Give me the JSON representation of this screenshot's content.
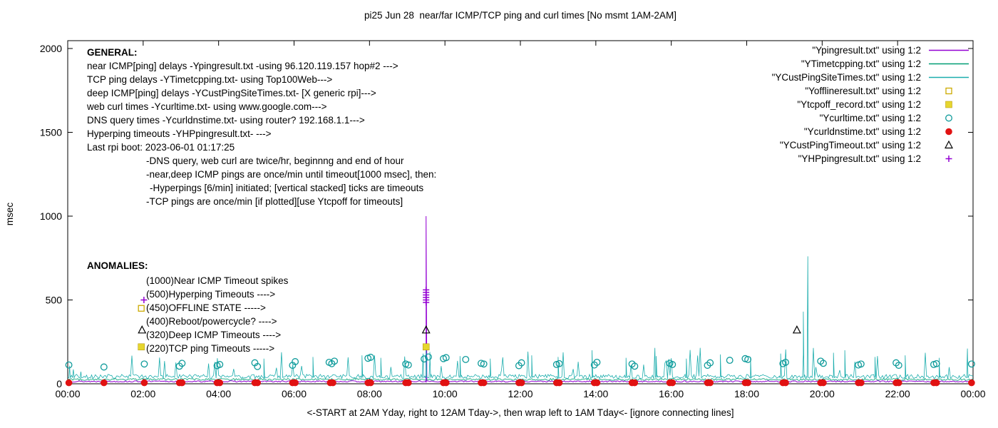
{
  "chart_data": {
    "type": "line",
    "title": "pi25 Jun 28  near/far ICMP/TCP ping and curl times [No msmt 1AM-2AM]",
    "xlabel": "<-START at 2AM Yday, right to 12AM Tday->, then wrap left to 1AM Tday<- [ignore connecting lines]",
    "ylabel": "msec",
    "ylim": [
      0,
      2000
    ],
    "xlim_hours": [
      0,
      24
    ],
    "y_ticks": [
      0,
      500,
      1000,
      1500,
      2000
    ],
    "x_tick_hours": [
      0,
      2,
      4,
      6,
      8,
      10,
      12,
      14,
      16,
      18,
      20,
      22,
      24
    ],
    "x_tick_labels": [
      "00:00",
      "02:00",
      "04:00",
      "06:00",
      "08:00",
      "10:00",
      "12:00",
      "14:00",
      "16:00",
      "18:00",
      "20:00",
      "22:00",
      "00:00"
    ],
    "grid": false,
    "legend_position": "top-right",
    "series": [
      {
        "name": "Ypingresult.txt",
        "type": "line",
        "color": "#9400d3",
        "width": 1.0,
        "baseline": 10,
        "noise": 8,
        "spikes": [
          [
            9.5,
            1000
          ]
        ]
      },
      {
        "name": "YTimetcpping.txt",
        "type": "line",
        "color": "#009e73",
        "width": 0.8,
        "baseline": 20,
        "noise": 12,
        "spikes": []
      },
      {
        "name": "YCustPingSiteTimes.txt",
        "type": "line",
        "color": "#1cadad",
        "width": 0.8,
        "baseline": 30,
        "noise": 26,
        "spike_rate": 0.05,
        "spike_range": [
          80,
          215
        ],
        "spikes": [
          [
            0.05,
            108
          ],
          [
            0.15,
            86
          ],
          [
            0.35,
            72
          ],
          [
            5.2,
            150
          ],
          [
            6.5,
            160
          ],
          [
            7.8,
            170
          ],
          [
            8.3,
            155
          ],
          [
            9.42,
            180
          ],
          [
            9.5,
            205
          ],
          [
            9.6,
            190
          ],
          [
            10.4,
            165
          ],
          [
            11.2,
            150
          ],
          [
            12.3,
            170
          ],
          [
            13.0,
            160
          ],
          [
            13.9,
            200
          ],
          [
            14.8,
            155
          ],
          [
            15.6,
            165
          ],
          [
            16.4,
            150
          ],
          [
            17.3,
            175
          ],
          [
            18.1,
            160
          ],
          [
            18.9,
            180
          ],
          [
            19.5,
            430
          ],
          [
            19.62,
            760
          ],
          [
            20.3,
            185
          ],
          [
            20.6,
            200
          ],
          [
            21.4,
            160
          ],
          [
            22.2,
            170
          ],
          [
            23.1,
            155
          ],
          [
            23.85,
            210
          ]
        ]
      },
      {
        "name": "Yofflineresult.txt",
        "type": "points",
        "marker": "open-square",
        "color": "#ccaa00",
        "points": []
      },
      {
        "name": "Ytcpoff_record.txt",
        "type": "points",
        "marker": "filled-square",
        "color": "#e6d62e",
        "points": [
          [
            9.5,
            220
          ]
        ]
      },
      {
        "name": "Ycurltime.txt",
        "type": "points",
        "marker": "open-circle",
        "color": "#0f9b9b",
        "points": [
          [
            0.03,
            112
          ],
          [
            0.96,
            100
          ],
          [
            2.03,
            118
          ],
          [
            2.96,
            105
          ],
          [
            3.03,
            122
          ],
          [
            3.96,
            108
          ],
          [
            4.03,
            115
          ],
          [
            4.96,
            125
          ],
          [
            5.03,
            103
          ],
          [
            5.96,
            110
          ],
          [
            6.03,
            132
          ],
          [
            6.93,
            128
          ],
          [
            7.0,
            120
          ],
          [
            7.07,
            135
          ],
          [
            7.96,
            152
          ],
          [
            8.03,
            158
          ],
          [
            8.96,
            118
          ],
          [
            9.03,
            112
          ],
          [
            9.45,
            148
          ],
          [
            9.56,
            160
          ],
          [
            9.96,
            150
          ],
          [
            10.03,
            156
          ],
          [
            10.55,
            145
          ],
          [
            10.96,
            122
          ],
          [
            11.03,
            118
          ],
          [
            11.96,
            108
          ],
          [
            12.03,
            125
          ],
          [
            12.96,
            115
          ],
          [
            13.03,
            120
          ],
          [
            13.96,
            112
          ],
          [
            14.03,
            128
          ],
          [
            14.96,
            118
          ],
          [
            15.03,
            105
          ],
          [
            15.96,
            122
          ],
          [
            16.03,
            115
          ],
          [
            16.96,
            110
          ],
          [
            17.03,
            125
          ],
          [
            17.55,
            140
          ],
          [
            17.96,
            150
          ],
          [
            18.03,
            145
          ],
          [
            18.96,
            120
          ],
          [
            19.03,
            128
          ],
          [
            19.96,
            135
          ],
          [
            20.03,
            122
          ],
          [
            20.96,
            112
          ],
          [
            21.03,
            118
          ],
          [
            21.96,
            125
          ],
          [
            22.03,
            110
          ],
          [
            22.96,
            115
          ],
          [
            23.03,
            120
          ],
          [
            23.96,
            118
          ]
        ]
      },
      {
        "name": "Ycurldnstime.txt",
        "type": "points",
        "marker": "filled-circle",
        "color": "#e11212",
        "y_all": 6,
        "x": [
          0.03,
          0.96,
          2.03,
          2.96,
          3.03,
          3.96,
          4.03,
          4.96,
          5.03,
          5.96,
          6.03,
          6.96,
          7.03,
          7.96,
          8.03,
          8.96,
          9.03,
          9.96,
          10.03,
          10.96,
          11.03,
          11.96,
          12.03,
          12.96,
          13.03,
          13.96,
          14.03,
          14.96,
          15.03,
          15.96,
          16.03,
          16.96,
          17.03,
          17.96,
          18.03,
          18.96,
          19.03,
          19.96,
          20.03,
          20.96,
          21.03,
          21.96,
          22.03,
          22.96,
          23.03,
          23.96
        ]
      },
      {
        "name": "YCustPingTimeout.txt",
        "type": "points",
        "marker": "open-triangle",
        "color": "#000000",
        "points": [
          [
            9.5,
            320
          ],
          [
            19.33,
            320
          ]
        ]
      },
      {
        "name": "YHPpingresult.txt",
        "type": "points",
        "marker": "plus",
        "color": "#9400d3",
        "points": [
          [
            9.5,
            485
          ],
          [
            9.5,
            500
          ],
          [
            9.5,
            515
          ],
          [
            9.5,
            530
          ],
          [
            9.5,
            545
          ],
          [
            9.5,
            560
          ]
        ]
      }
    ],
    "anomaly_markers": [
      {
        "marker": "plus",
        "color": "#9400d3",
        "x": 2.02,
        "y": 500
      },
      {
        "marker": "open-square",
        "color": "#ccaa00",
        "x": 1.95,
        "y": 450
      },
      {
        "marker": "open-triangle",
        "color": "#000000",
        "x": 1.97,
        "y": 320
      },
      {
        "marker": "filled-square",
        "color": "#e6d62e",
        "x": 1.95,
        "y": 220
      }
    ]
  },
  "legend": {
    "entries": [
      {
        "label": "\"Ypingresult.txt\" using 1:2",
        "marker": "line",
        "color": "#9400d3"
      },
      {
        "label": "\"YTimetcpping.txt\" using 1:2",
        "marker": "line",
        "color": "#009e73"
      },
      {
        "label": "\"YCustPingSiteTimes.txt\" using 1:2",
        "marker": "line",
        "color": "#1cadad"
      },
      {
        "label": "\"Yofflineresult.txt\" using 1:2",
        "marker": "open-square",
        "color": "#ccaa00"
      },
      {
        "label": "\"Ytcpoff_record.txt\" using 1:2",
        "marker": "filled-square",
        "color": "#e6d62e"
      },
      {
        "label": "\"Ycurltime.txt\" using 1:2",
        "marker": "open-circle",
        "color": "#0f9b9b"
      },
      {
        "label": "\"Ycurldnstime.txt\" using 1:2",
        "marker": "filled-circle",
        "color": "#e11212"
      },
      {
        "label": "\"YCustPingTimeout.txt\" using 1:2",
        "marker": "open-triangle",
        "color": "#000000"
      },
      {
        "label": "\"YHPpingresult.txt\" using 1:2",
        "marker": "plus",
        "color": "#9400d3"
      }
    ]
  },
  "annotations": {
    "general": {
      "heading": "GENERAL:",
      "lines": [
        "near ICMP[ping] delays -Ypingresult.txt -using 96.120.119.157 hop#2 --->",
        "TCP ping delays -YTimetcpping.txt- using Top100Web--->",
        "deep ICMP[ping] delays -YCustPingSiteTimes.txt- [X generic rpi]--->",
        "web curl times -Ycurltime.txt- using www.google.com--->",
        "DNS query times -Ycurldnstime.txt- using router? 192.168.1.1--->",
        "Hyperping timeouts -YHPpingresult.txt- --->",
        "Last rpi boot: 2023-06-01 01:17:25",
        "-DNS query, web curl are twice/hr, beginnng and end of hour",
        "-near,deep ICMP pings are once/min until timeout[1000 msec], then:",
        "-Hyperpings [6/min] initiated; [vertical stacked] ticks are timeouts",
        "-TCP pings are once/min [if plotted][use Ytcpoff for timeouts]"
      ]
    },
    "anomalies": {
      "heading": "ANOMALIES:",
      "lines": [
        "(1000)Near ICMP Timeout spikes",
        "(500)Hyperping Timeouts ---->",
        "(450)OFFLINE STATE ----->",
        "(400)Reboot/powercycle? ---->",
        "(320)Deep ICMP Timeouts ---->",
        "(220)TCP ping Timeouts ----->"
      ]
    }
  }
}
